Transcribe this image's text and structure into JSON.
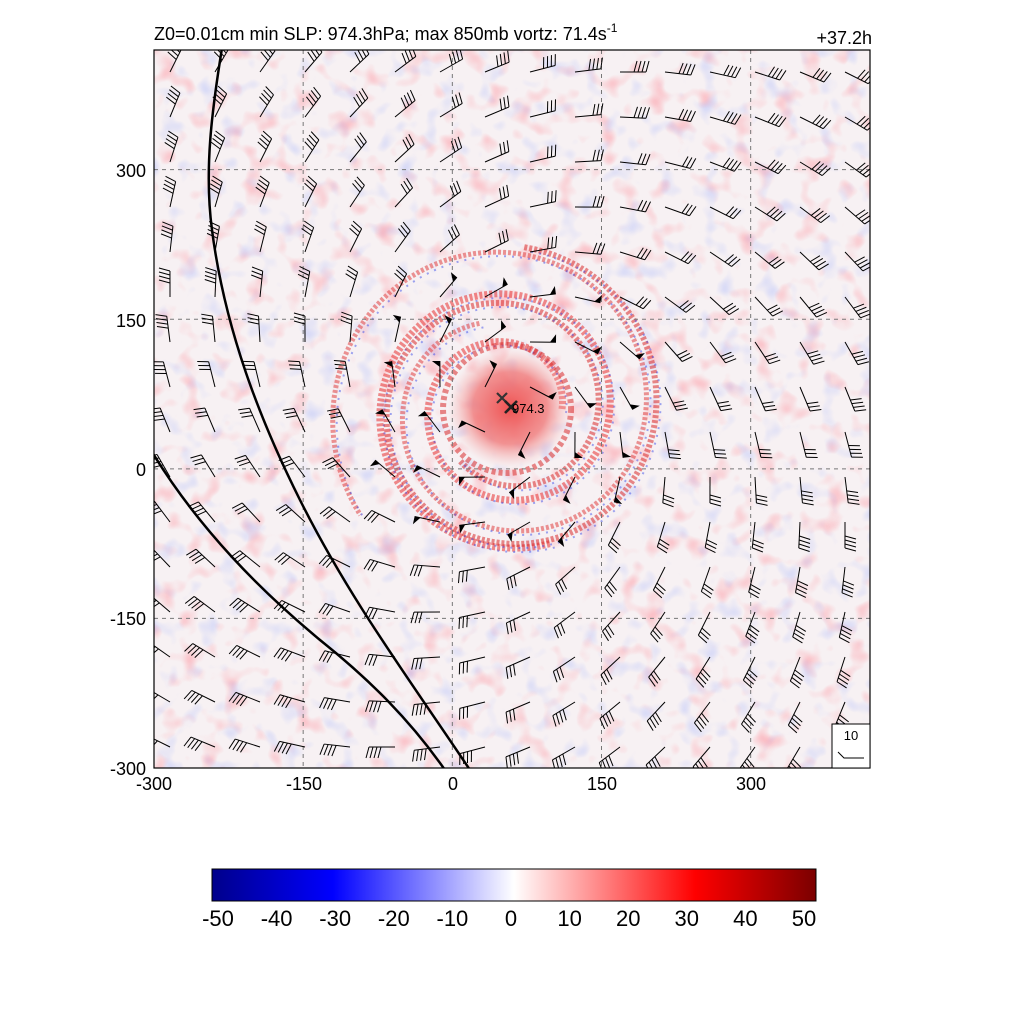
{
  "figure": {
    "title_left": "Z0=0.01cm  min SLP: 974.3hPa; max 850mb vortz:  71.4s",
    "title_superscript": "-1",
    "valid_time": "+37.2h",
    "center_marker_label": "974.3",
    "barb_reference_label": "10"
  },
  "axes": {
    "x_range": [
      -300,
      420
    ],
    "y_range": [
      -300,
      420
    ],
    "x_ticks": [
      "-300",
      "-150",
      "0",
      "150",
      "300"
    ],
    "y_ticks": [
      "300",
      "150",
      "0",
      "-150",
      "-300"
    ],
    "grid": "dashed"
  },
  "colorbar": {
    "range": [
      -50,
      50
    ],
    "ticks": [
      "-50",
      "-40",
      "-30",
      "-20",
      "-10",
      "0",
      "10",
      "20",
      "30",
      "40",
      "50"
    ],
    "colors": [
      "#00008b",
      "#0000ff",
      "#ffffff",
      "#ff0000",
      "#7b0000"
    ]
  },
  "field": {
    "storm_center": [
      55,
      60
    ],
    "contour_lines": 2,
    "background": "#f6f2f4"
  }
}
